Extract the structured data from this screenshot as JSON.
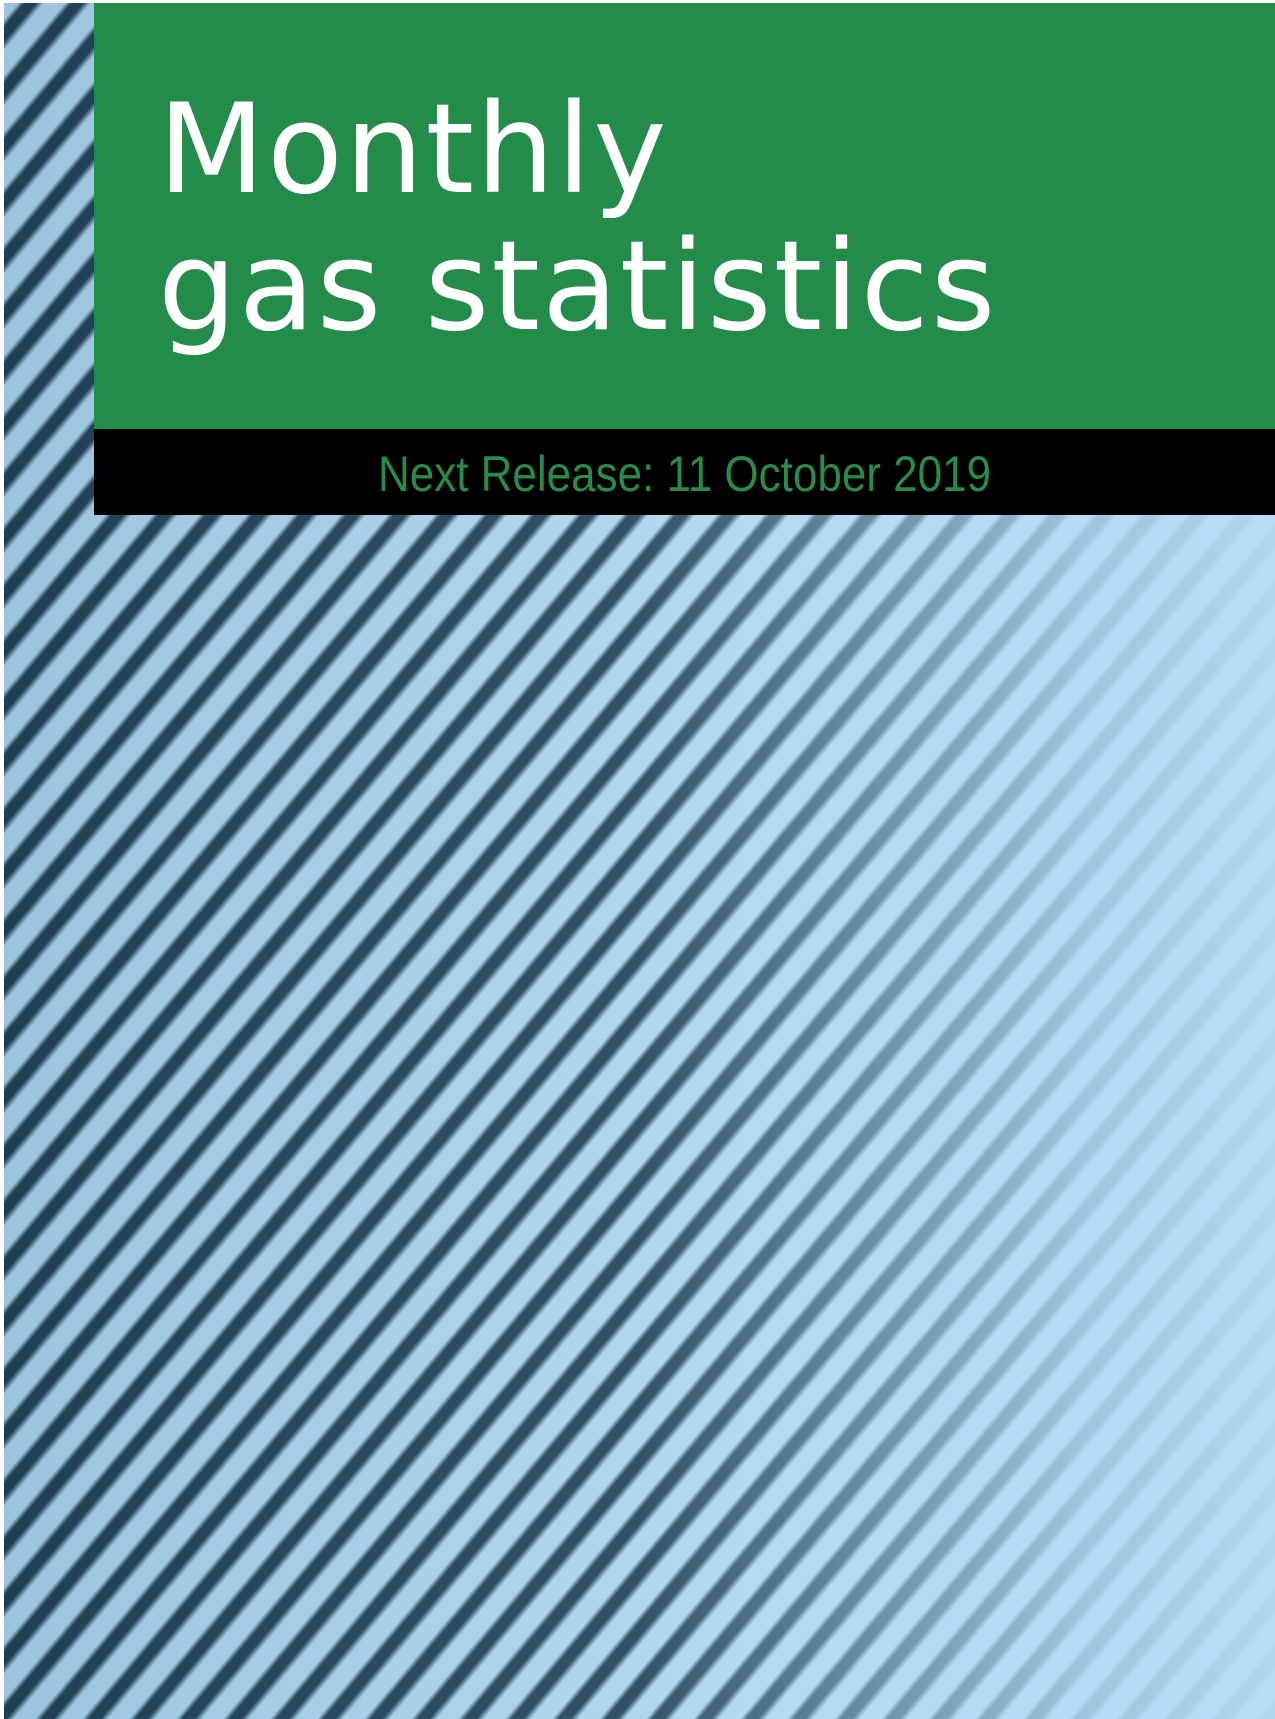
{
  "cover": {
    "title": [
      "Monthly",
      "gas statistics"
    ],
    "next_release": "Next Release: 11 October 2019"
  }
}
